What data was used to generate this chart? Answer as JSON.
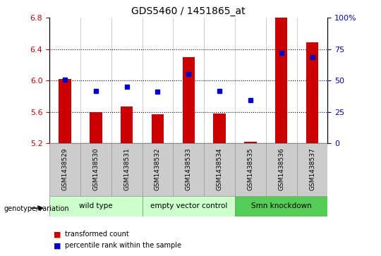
{
  "title": "GDS5460 / 1451865_at",
  "samples": [
    "GSM1438529",
    "GSM1438530",
    "GSM1438531",
    "GSM1438532",
    "GSM1438533",
    "GSM1438534",
    "GSM1438535",
    "GSM1438536",
    "GSM1438537"
  ],
  "red_values": [
    6.02,
    5.6,
    5.67,
    5.57,
    6.3,
    5.58,
    5.22,
    6.8,
    6.49
  ],
  "blue_values": [
    6.01,
    5.87,
    5.92,
    5.86,
    6.08,
    5.87,
    5.75,
    6.35,
    6.3
  ],
  "ylim_left": [
    5.2,
    6.8
  ],
  "ylim_right": [
    0,
    100
  ],
  "yticks_left": [
    5.2,
    5.6,
    6.0,
    6.4,
    6.8
  ],
  "yticks_right": [
    0,
    25,
    50,
    75,
    100
  ],
  "bar_bottom": 5.2,
  "red_color": "#cc0000",
  "blue_color": "#0000cc",
  "sample_box_color": "#cccccc",
  "group_info": [
    {
      "label": "wild type",
      "start": 0,
      "end": 2,
      "color": "#ccffcc"
    },
    {
      "label": "empty vector control",
      "start": 3,
      "end": 5,
      "color": "#ccffcc"
    },
    {
      "label": "Smn knockdown",
      "start": 6,
      "end": 8,
      "color": "#55cc55"
    }
  ],
  "genotype_label": "genotype/variation",
  "legend_red": "transformed count",
  "legend_blue": "percentile rank within the sample"
}
